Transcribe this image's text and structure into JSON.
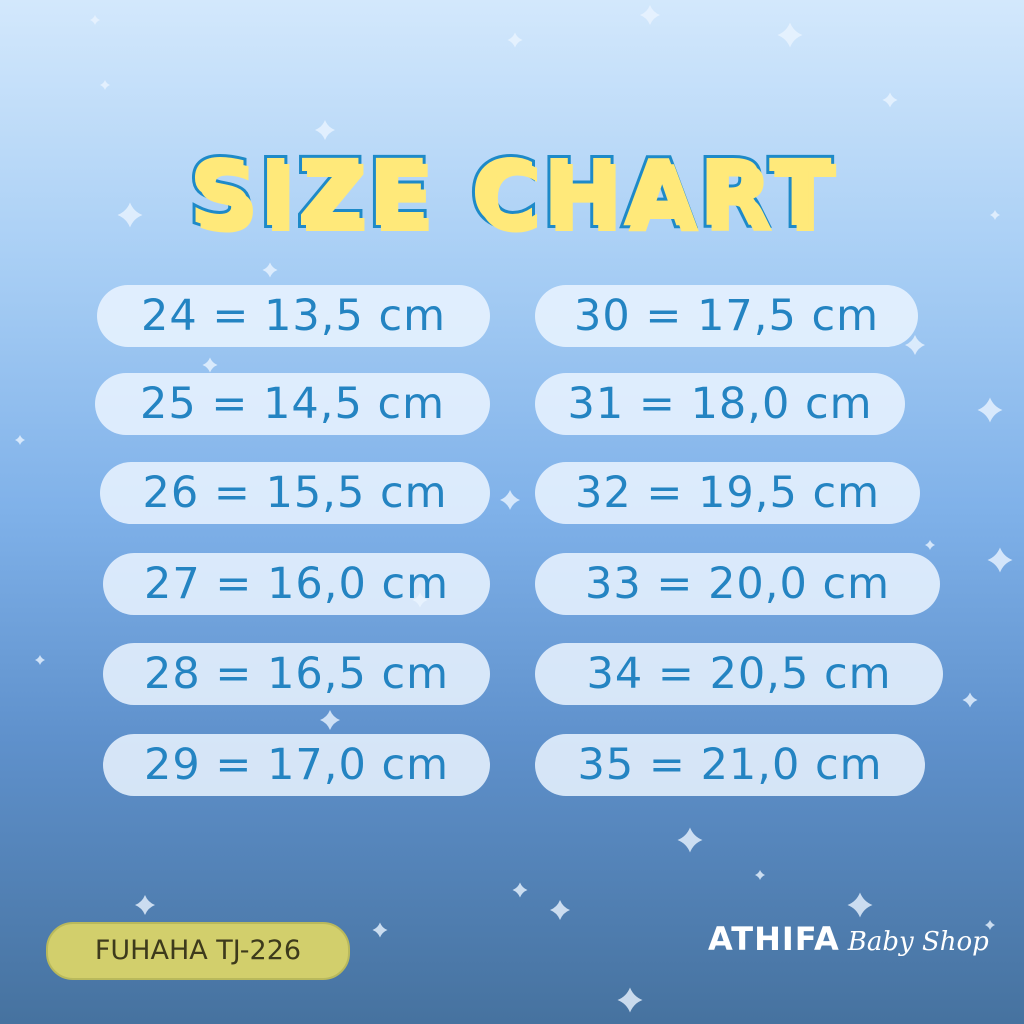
{
  "title": "SIZE CHART",
  "colors": {
    "title_fill": "#ffe97a",
    "title_outline": "#1e8ac8",
    "text": "#2484c2",
    "badge": "#d2cf6c"
  },
  "sizes_left": [
    "24 = 13,5 cm",
    "25 = 14,5 cm",
    "26 = 15,5 cm",
    "27 = 16,0 cm",
    "28 = 16,5 cm",
    "29 = 17,0 cm"
  ],
  "sizes_right": [
    "30 = 17,5 cm",
    "31 = 18,0 cm",
    "32 = 19,5 cm",
    "33 = 20,0 cm",
    "34 = 20,5 cm",
    "35 = 21,0 cm"
  ],
  "product_code": "FUHAHA TJ-226",
  "brand": {
    "name": "ATHIFA",
    "tagline": "Baby Shop"
  },
  "decoration_icon": "sparkle-star-icon"
}
